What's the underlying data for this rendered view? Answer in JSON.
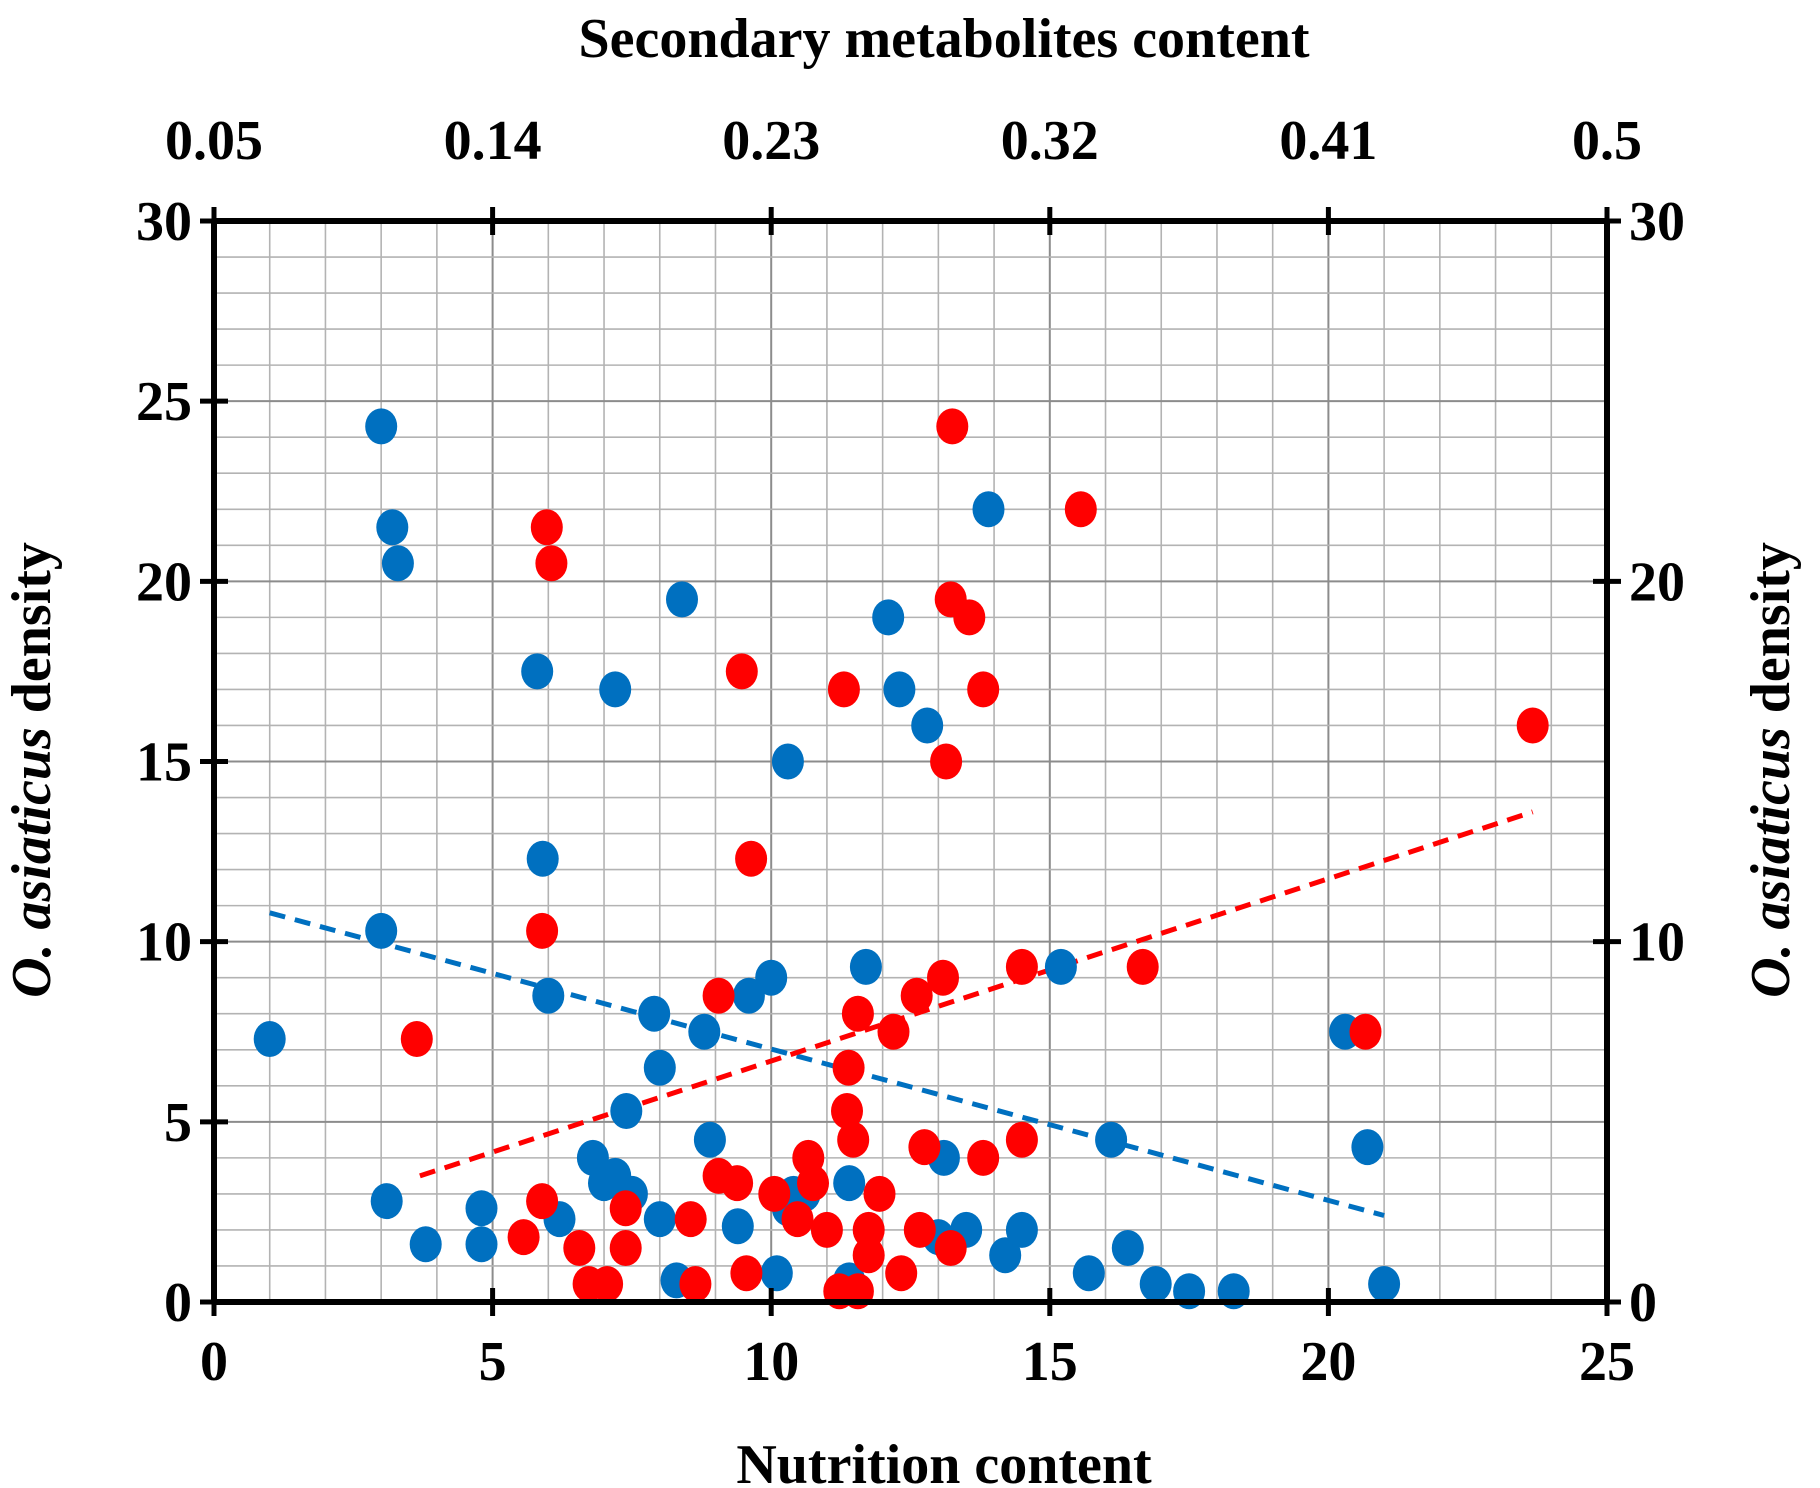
{
  "chart_data": {
    "type": "scatter",
    "title": "",
    "xlabel": "Nutrition content",
    "x2label": "Secondary metabolites content",
    "ylabel_italic": "O. asiaticus",
    "ylabel_rest": " density",
    "y2label_italic": "O. asiaticus",
    "y2label_rest": " density",
    "xlim": [
      0,
      25
    ],
    "x2lim": [
      0.05,
      0.5
    ],
    "ylim": [
      0,
      30
    ],
    "y2lim": [
      0,
      30
    ],
    "x_ticks": [
      "0",
      "5",
      "10",
      "15",
      "20",
      "25"
    ],
    "x2_ticks": [
      "0.05",
      "0.14",
      "0.23",
      "0.32",
      "0.41",
      "0.5"
    ],
    "y_ticks": [
      "0",
      "5",
      "10",
      "15",
      "20",
      "25",
      "30"
    ],
    "y2_ticks": [
      "0",
      "10",
      "20",
      "30"
    ],
    "grid": true,
    "colors": {
      "blue": "#0070c0",
      "red": "#ff0000"
    },
    "series": [
      {
        "name": "Nutrition content",
        "color": "#0070c0",
        "axis": "primary",
        "points": [
          [
            1.0,
            7.3
          ],
          [
            3.0,
            24.3
          ],
          [
            3.2,
            21.5
          ],
          [
            3.3,
            20.5
          ],
          [
            3.0,
            10.3
          ],
          [
            3.1,
            2.8
          ],
          [
            3.8,
            1.6
          ],
          [
            4.8,
            2.6
          ],
          [
            4.8,
            1.6
          ],
          [
            5.8,
            17.5
          ],
          [
            5.9,
            12.3
          ],
          [
            6.0,
            8.5
          ],
          [
            6.2,
            2.3
          ],
          [
            6.8,
            4.0
          ],
          [
            7.0,
            3.3
          ],
          [
            7.2,
            3.5
          ],
          [
            7.2,
            17.0
          ],
          [
            7.4,
            5.3
          ],
          [
            7.5,
            3.0
          ],
          [
            7.9,
            8.0
          ],
          [
            8.0,
            6.5
          ],
          [
            8.0,
            2.3
          ],
          [
            8.3,
            0.6
          ],
          [
            8.4,
            19.5
          ],
          [
            8.8,
            7.5
          ],
          [
            8.9,
            4.5
          ],
          [
            9.4,
            2.1
          ],
          [
            9.6,
            8.5
          ],
          [
            10.0,
            9.0
          ],
          [
            10.1,
            0.8
          ],
          [
            10.3,
            15.0
          ],
          [
            10.3,
            2.6
          ],
          [
            10.4,
            3.0
          ],
          [
            10.6,
            3.0
          ],
          [
            11.4,
            3.3
          ],
          [
            11.4,
            0.6
          ],
          [
            11.7,
            9.3
          ],
          [
            12.1,
            19.0
          ],
          [
            12.3,
            17.0
          ],
          [
            12.8,
            16.0
          ],
          [
            13.0,
            1.8
          ],
          [
            13.1,
            4.0
          ],
          [
            13.5,
            2.0
          ],
          [
            13.9,
            22.0
          ],
          [
            14.2,
            1.3
          ],
          [
            14.5,
            2.0
          ],
          [
            15.2,
            9.3
          ],
          [
            15.7,
            0.8
          ],
          [
            16.1,
            4.5
          ],
          [
            16.4,
            1.5
          ],
          [
            16.9,
            0.5
          ],
          [
            17.5,
            0.3
          ],
          [
            18.3,
            0.3
          ],
          [
            20.3,
            7.5
          ],
          [
            20.7,
            4.3
          ],
          [
            21.0,
            0.5
          ]
        ],
        "trendline": [
          [
            1.0,
            10.8
          ],
          [
            21.0,
            2.4
          ]
        ]
      },
      {
        "name": "Secondary metabolites content",
        "color": "#ff0000",
        "axis": "secondary",
        "points": [
          [
            0.1155,
            7.3
          ],
          [
            0.1575,
            21.5
          ],
          [
            0.159,
            20.5
          ],
          [
            0.156,
            10.3
          ],
          [
            0.156,
            2.8
          ],
          [
            0.15,
            1.8
          ],
          [
            0.168,
            1.5
          ],
          [
            0.171,
            0.5
          ],
          [
            0.177,
            0.5
          ],
          [
            0.183,
            2.6
          ],
          [
            0.183,
            1.5
          ],
          [
            0.204,
            2.3
          ],
          [
            0.2055,
            0.5
          ],
          [
            0.213,
            8.5
          ],
          [
            0.213,
            3.5
          ],
          [
            0.219,
            3.3
          ],
          [
            0.2205,
            17.5
          ],
          [
            0.222,
            0.8
          ],
          [
            0.2235,
            12.3
          ],
          [
            0.231,
            3.0
          ],
          [
            0.2385,
            2.3
          ],
          [
            0.242,
            4.0
          ],
          [
            0.2435,
            3.3
          ],
          [
            0.248,
            2.0
          ],
          [
            0.252,
            0.3
          ],
          [
            0.2535,
            17.0
          ],
          [
            0.2545,
            5.3
          ],
          [
            0.255,
            6.5
          ],
          [
            0.2565,
            4.5
          ],
          [
            0.258,
            8.0
          ],
          [
            0.258,
            0.3
          ],
          [
            0.2615,
            2.0
          ],
          [
            0.2615,
            1.3
          ],
          [
            0.265,
            3.0
          ],
          [
            0.2695,
            7.5
          ],
          [
            0.272,
            0.8
          ],
          [
            0.277,
            8.5
          ],
          [
            0.278,
            2.0
          ],
          [
            0.2795,
            4.3
          ],
          [
            0.2855,
            9.0
          ],
          [
            0.2865,
            15.0
          ],
          [
            0.288,
            19.5
          ],
          [
            0.288,
            1.5
          ],
          [
            0.2885,
            24.3
          ],
          [
            0.294,
            19.0
          ],
          [
            0.2985,
            17.0
          ],
          [
            0.2985,
            4.0
          ],
          [
            0.311,
            9.3
          ],
          [
            0.311,
            4.5
          ],
          [
            0.33,
            22.0
          ],
          [
            0.35,
            9.3
          ],
          [
            0.422,
            7.5
          ],
          [
            0.476,
            16.0
          ]
        ],
        "trendline": [
          [
            0.1165,
            3.5
          ],
          [
            0.476,
            13.6
          ]
        ]
      }
    ]
  }
}
